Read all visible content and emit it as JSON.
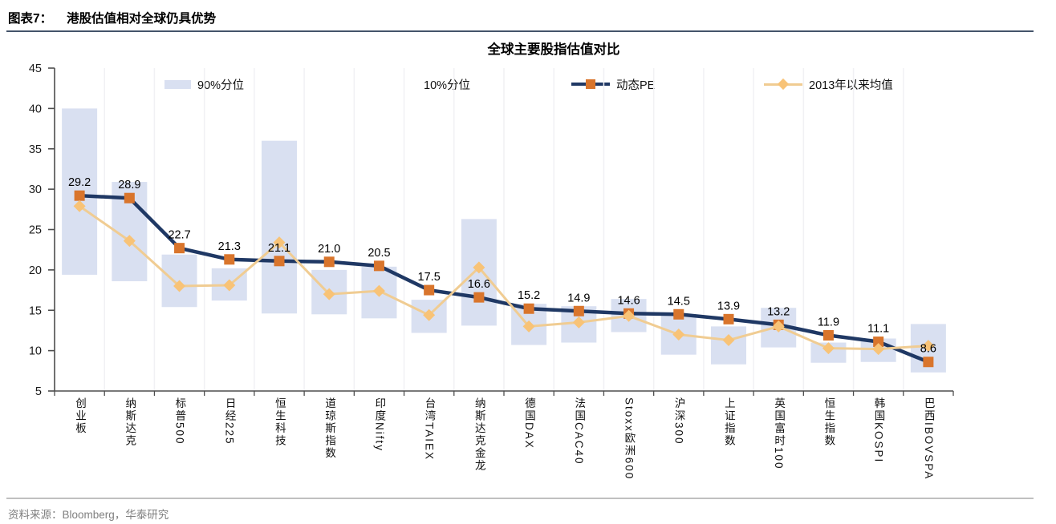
{
  "page": {
    "exhibit_label": "图表7：",
    "exhibit_title": "港股估值相对全球仍具优势",
    "source_text": "资料来源：Bloomberg，华泰研究"
  },
  "chart_data": {
    "type": "combo-range-bar-line",
    "title": "全球主要股指估值对比",
    "categories": [
      "创业板",
      "纳斯达克",
      "标普500",
      "日经225",
      "恒生科技",
      "道琼斯指数",
      "印度Nifty",
      "台湾TAIEX",
      "纳斯达克金龙",
      "德国DAX",
      "法国CAC40",
      "Stoxx欧洲600",
      "沪深300",
      "上证指数",
      "英国富时100",
      "恒生指数",
      "韩国KOSPI",
      "巴西IBOVSPA"
    ],
    "series": [
      {
        "name": "90%分位",
        "type": "range-top",
        "values": [
          40.0,
          30.9,
          21.9,
          20.2,
          36.0,
          20.0,
          20.4,
          16.3,
          26.3,
          15.8,
          15.5,
          16.4,
          14.4,
          13.0,
          15.3,
          11.0,
          11.5,
          13.3
        ]
      },
      {
        "name": "10%分位",
        "type": "range-bottom",
        "values": [
          19.4,
          18.6,
          15.4,
          16.2,
          14.6,
          14.5,
          14.0,
          12.2,
          13.1,
          10.7,
          11.0,
          12.3,
          9.5,
          8.3,
          10.4,
          8.5,
          8.6,
          7.3
        ]
      },
      {
        "name": "动态PE",
        "type": "line-square",
        "data_labels": true,
        "values": [
          29.2,
          28.9,
          22.7,
          21.3,
          21.1,
          21.0,
          20.5,
          17.5,
          16.6,
          15.2,
          14.9,
          14.6,
          14.5,
          13.9,
          13.2,
          11.9,
          11.1,
          8.6
        ]
      },
      {
        "name": "2013年以来均值",
        "type": "line-diamond",
        "values": [
          27.9,
          23.6,
          18.0,
          18.1,
          23.4,
          17.0,
          17.4,
          14.4,
          20.3,
          13.0,
          13.5,
          14.3,
          12.0,
          11.3,
          13.0,
          10.3,
          10.2,
          10.6
        ]
      }
    ],
    "ylim": [
      5,
      45
    ],
    "yticks": [
      45,
      40,
      35,
      30,
      25,
      20,
      15,
      10,
      5
    ],
    "grid": "vertical-category-separators",
    "legend_position": "top",
    "xlabel": "",
    "ylabel": "",
    "colors": {
      "bar_fill": "#D9E0F1",
      "pe_line": "#1F3864",
      "pe_marker": "#D9752C",
      "avg_line": "#F0CC92",
      "avg_marker": "#F8C377",
      "axis": "#4D4D4D",
      "gridline": "#F1F1F4",
      "label_text": "#000000",
      "muted_text": "#7F7F7F",
      "header_rule": "#44546A",
      "footer_rule": "#C0C0C0"
    }
  }
}
